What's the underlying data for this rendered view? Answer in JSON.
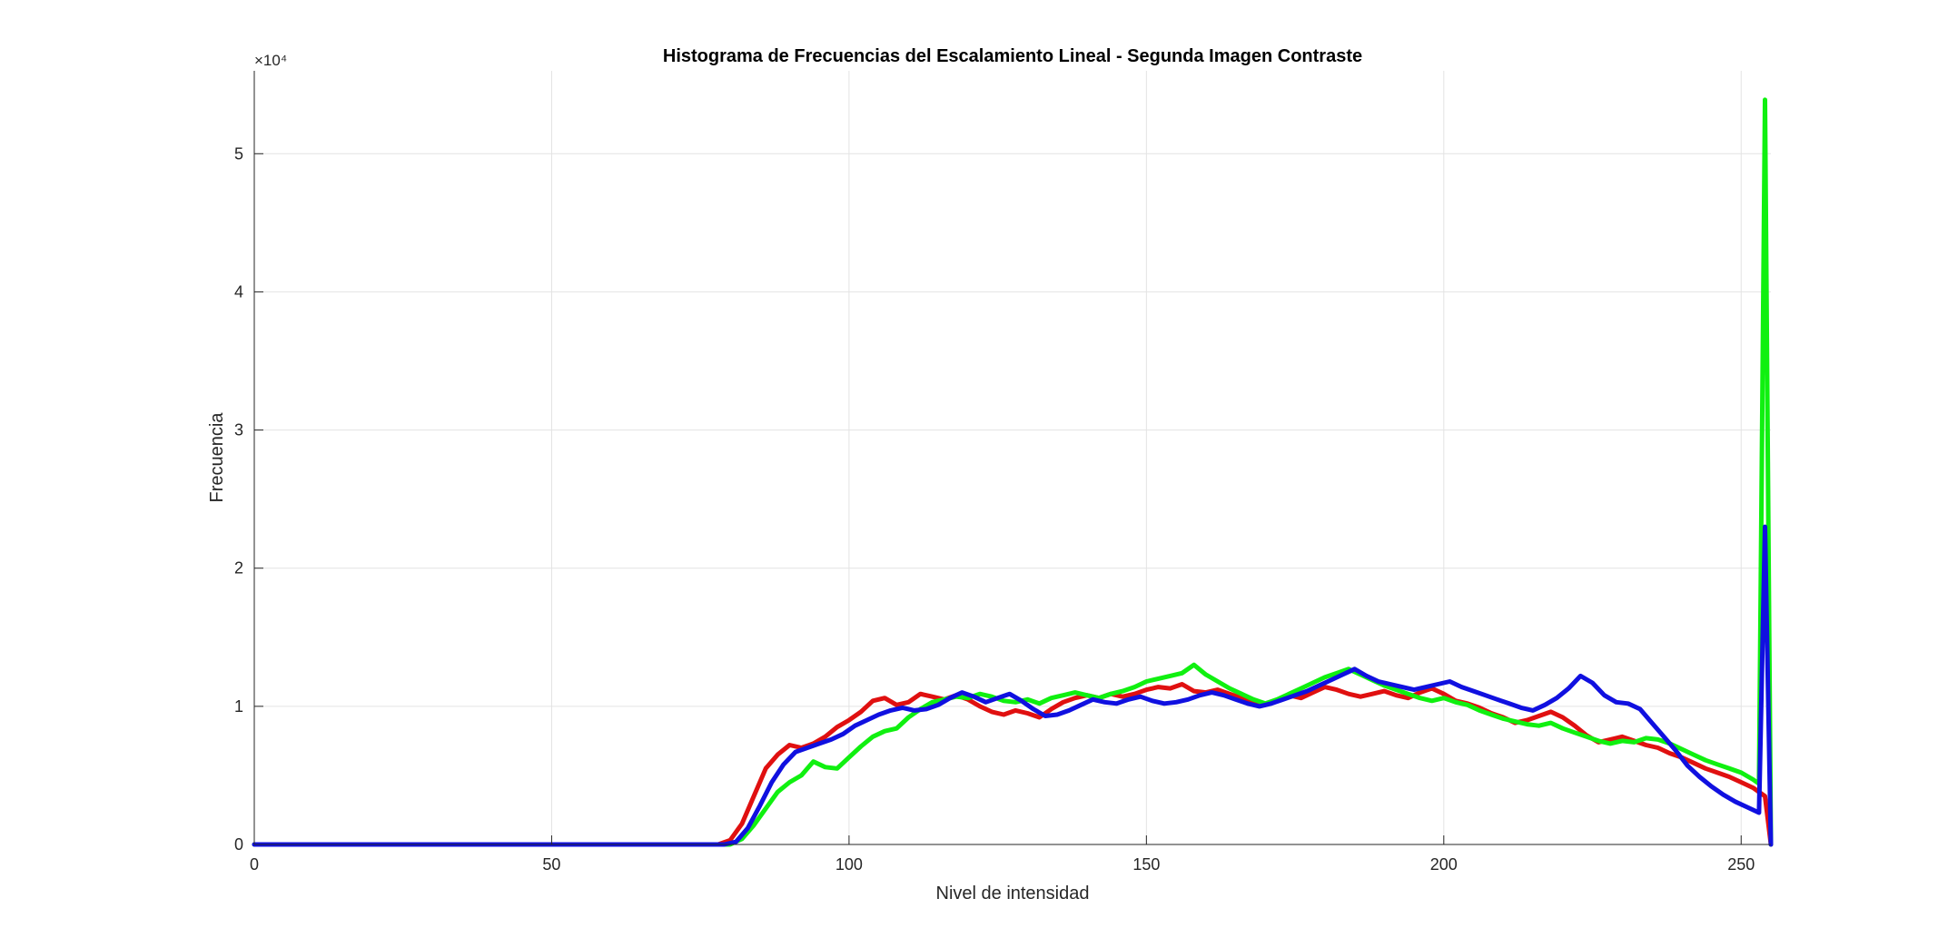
{
  "chart_data": {
    "type": "line",
    "title": "Histograma de Frecuencias del Escalamiento Lineal - Segunda Imagen Contraste",
    "xlabel": "Nivel de intensidad",
    "ylabel": "Frecuencia",
    "y_exponent_label": "×10⁴",
    "xlim": [
      0,
      255
    ],
    "ylim": [
      0,
      56000
    ],
    "xticks": [
      0,
      50,
      100,
      150,
      200,
      250
    ],
    "xtick_labels": [
      "0",
      "50",
      "100",
      "150",
      "200",
      "250"
    ],
    "yticks": [
      0,
      10000,
      20000,
      30000,
      40000,
      50000
    ],
    "ytick_labels": [
      "0",
      "1",
      "2",
      "3",
      "4",
      "5"
    ],
    "grid": true,
    "legend": "none",
    "series": [
      {
        "color": "#e01010",
        "points": [
          [
            0,
            0
          ],
          [
            78,
            0
          ],
          [
            80,
            300
          ],
          [
            82,
            1500
          ],
          [
            84,
            3500
          ],
          [
            86,
            5500
          ],
          [
            88,
            6500
          ],
          [
            90,
            7200
          ],
          [
            92,
            7000
          ],
          [
            94,
            7300
          ],
          [
            96,
            7800
          ],
          [
            98,
            8500
          ],
          [
            100,
            9000
          ],
          [
            102,
            9600
          ],
          [
            104,
            10400
          ],
          [
            106,
            10600
          ],
          [
            108,
            10100
          ],
          [
            110,
            10300
          ],
          [
            112,
            10900
          ],
          [
            114,
            10700
          ],
          [
            116,
            10500
          ],
          [
            118,
            10800
          ],
          [
            120,
            10500
          ],
          [
            122,
            10000
          ],
          [
            124,
            9600
          ],
          [
            126,
            9400
          ],
          [
            128,
            9700
          ],
          [
            130,
            9500
          ],
          [
            132,
            9200
          ],
          [
            134,
            9800
          ],
          [
            136,
            10300
          ],
          [
            138,
            10600
          ],
          [
            140,
            10800
          ],
          [
            142,
            10600
          ],
          [
            144,
            10900
          ],
          [
            146,
            10700
          ],
          [
            148,
            10900
          ],
          [
            150,
            11200
          ],
          [
            152,
            11400
          ],
          [
            154,
            11300
          ],
          [
            156,
            11600
          ],
          [
            158,
            11100
          ],
          [
            160,
            11000
          ],
          [
            162,
            11200
          ],
          [
            164,
            10900
          ],
          [
            166,
            10600
          ],
          [
            168,
            10400
          ],
          [
            170,
            10100
          ],
          [
            172,
            10400
          ],
          [
            174,
            10800
          ],
          [
            176,
            10600
          ],
          [
            178,
            11000
          ],
          [
            180,
            11400
          ],
          [
            182,
            11200
          ],
          [
            184,
            10900
          ],
          [
            186,
            10700
          ],
          [
            188,
            10900
          ],
          [
            190,
            11100
          ],
          [
            192,
            10800
          ],
          [
            194,
            10600
          ],
          [
            196,
            11000
          ],
          [
            198,
            11300
          ],
          [
            200,
            10900
          ],
          [
            202,
            10400
          ],
          [
            204,
            10200
          ],
          [
            206,
            9900
          ],
          [
            208,
            9500
          ],
          [
            210,
            9200
          ],
          [
            212,
            8800
          ],
          [
            214,
            9000
          ],
          [
            216,
            9300
          ],
          [
            218,
            9600
          ],
          [
            220,
            9200
          ],
          [
            222,
            8600
          ],
          [
            224,
            7900
          ],
          [
            226,
            7400
          ],
          [
            228,
            7600
          ],
          [
            230,
            7800
          ],
          [
            232,
            7500
          ],
          [
            234,
            7200
          ],
          [
            236,
            7000
          ],
          [
            238,
            6600
          ],
          [
            240,
            6300
          ],
          [
            242,
            5900
          ],
          [
            244,
            5500
          ],
          [
            246,
            5200
          ],
          [
            248,
            4900
          ],
          [
            250,
            4500
          ],
          [
            252,
            4100
          ],
          [
            253,
            3800
          ],
          [
            254,
            3500
          ],
          [
            255,
            0
          ]
        ]
      },
      {
        "color": "#10f010",
        "points": [
          [
            0,
            0
          ],
          [
            80,
            0
          ],
          [
            82,
            400
          ],
          [
            84,
            1400
          ],
          [
            86,
            2600
          ],
          [
            88,
            3800
          ],
          [
            90,
            4500
          ],
          [
            92,
            5000
          ],
          [
            94,
            6000
          ],
          [
            96,
            5600
          ],
          [
            98,
            5500
          ],
          [
            100,
            6300
          ],
          [
            102,
            7100
          ],
          [
            104,
            7800
          ],
          [
            106,
            8200
          ],
          [
            108,
            8400
          ],
          [
            110,
            9200
          ],
          [
            112,
            9800
          ],
          [
            114,
            10300
          ],
          [
            116,
            10500
          ],
          [
            118,
            10700
          ],
          [
            120,
            10600
          ],
          [
            122,
            10900
          ],
          [
            124,
            10700
          ],
          [
            126,
            10400
          ],
          [
            128,
            10300
          ],
          [
            130,
            10500
          ],
          [
            132,
            10200
          ],
          [
            134,
            10600
          ],
          [
            136,
            10800
          ],
          [
            138,
            11000
          ],
          [
            140,
            10800
          ],
          [
            142,
            10600
          ],
          [
            144,
            10900
          ],
          [
            146,
            11100
          ],
          [
            148,
            11400
          ],
          [
            150,
            11800
          ],
          [
            152,
            12000
          ],
          [
            154,
            12200
          ],
          [
            156,
            12400
          ],
          [
            158,
            13000
          ],
          [
            160,
            12300
          ],
          [
            162,
            11800
          ],
          [
            164,
            11300
          ],
          [
            166,
            10900
          ],
          [
            168,
            10500
          ],
          [
            170,
            10200
          ],
          [
            172,
            10500
          ],
          [
            174,
            10900
          ],
          [
            176,
            11300
          ],
          [
            178,
            11700
          ],
          [
            180,
            12100
          ],
          [
            182,
            12400
          ],
          [
            184,
            12700
          ],
          [
            186,
            12300
          ],
          [
            188,
            11900
          ],
          [
            190,
            11500
          ],
          [
            192,
            11200
          ],
          [
            194,
            10900
          ],
          [
            196,
            10600
          ],
          [
            198,
            10400
          ],
          [
            200,
            10600
          ],
          [
            202,
            10300
          ],
          [
            204,
            10100
          ],
          [
            206,
            9700
          ],
          [
            208,
            9400
          ],
          [
            210,
            9100
          ],
          [
            212,
            8900
          ],
          [
            214,
            8700
          ],
          [
            216,
            8600
          ],
          [
            218,
            8800
          ],
          [
            220,
            8400
          ],
          [
            222,
            8100
          ],
          [
            224,
            7800
          ],
          [
            226,
            7500
          ],
          [
            228,
            7300
          ],
          [
            230,
            7500
          ],
          [
            232,
            7400
          ],
          [
            234,
            7700
          ],
          [
            236,
            7600
          ],
          [
            238,
            7300
          ],
          [
            240,
            6900
          ],
          [
            242,
            6500
          ],
          [
            244,
            6100
          ],
          [
            246,
            5800
          ],
          [
            248,
            5500
          ],
          [
            250,
            5200
          ],
          [
            252,
            4700
          ],
          [
            253,
            4400
          ],
          [
            254,
            53900
          ],
          [
            255,
            0
          ]
        ]
      },
      {
        "color": "#1010e0",
        "points": [
          [
            0,
            0
          ],
          [
            79,
            0
          ],
          [
            81,
            200
          ],
          [
            83,
            1200
          ],
          [
            85,
            2800
          ],
          [
            87,
            4500
          ],
          [
            89,
            5800
          ],
          [
            91,
            6700
          ],
          [
            93,
            7000
          ],
          [
            95,
            7300
          ],
          [
            97,
            7600
          ],
          [
            99,
            8000
          ],
          [
            101,
            8600
          ],
          [
            103,
            9000
          ],
          [
            105,
            9400
          ],
          [
            107,
            9700
          ],
          [
            109,
            9900
          ],
          [
            111,
            9700
          ],
          [
            113,
            9800
          ],
          [
            115,
            10100
          ],
          [
            117,
            10600
          ],
          [
            119,
            11000
          ],
          [
            121,
            10700
          ],
          [
            123,
            10300
          ],
          [
            125,
            10600
          ],
          [
            127,
            10900
          ],
          [
            129,
            10400
          ],
          [
            131,
            9800
          ],
          [
            133,
            9300
          ],
          [
            135,
            9400
          ],
          [
            137,
            9700
          ],
          [
            139,
            10100
          ],
          [
            141,
            10500
          ],
          [
            143,
            10300
          ],
          [
            145,
            10200
          ],
          [
            147,
            10500
          ],
          [
            149,
            10700
          ],
          [
            151,
            10400
          ],
          [
            153,
            10200
          ],
          [
            155,
            10300
          ],
          [
            157,
            10500
          ],
          [
            159,
            10800
          ],
          [
            161,
            11000
          ],
          [
            163,
            10800
          ],
          [
            165,
            10500
          ],
          [
            167,
            10200
          ],
          [
            169,
            10000
          ],
          [
            171,
            10200
          ],
          [
            173,
            10500
          ],
          [
            175,
            10800
          ],
          [
            177,
            11100
          ],
          [
            179,
            11500
          ],
          [
            181,
            11900
          ],
          [
            183,
            12300
          ],
          [
            185,
            12700
          ],
          [
            187,
            12200
          ],
          [
            189,
            11800
          ],
          [
            191,
            11600
          ],
          [
            193,
            11400
          ],
          [
            195,
            11200
          ],
          [
            197,
            11400
          ],
          [
            199,
            11600
          ],
          [
            201,
            11800
          ],
          [
            203,
            11400
          ],
          [
            205,
            11100
          ],
          [
            207,
            10800
          ],
          [
            209,
            10500
          ],
          [
            211,
            10200
          ],
          [
            213,
            9900
          ],
          [
            215,
            9700
          ],
          [
            217,
            10100
          ],
          [
            219,
            10600
          ],
          [
            221,
            11300
          ],
          [
            223,
            12200
          ],
          [
            225,
            11700
          ],
          [
            227,
            10800
          ],
          [
            229,
            10300
          ],
          [
            231,
            10200
          ],
          [
            233,
            9800
          ],
          [
            235,
            8800
          ],
          [
            237,
            7800
          ],
          [
            239,
            6800
          ],
          [
            241,
            5700
          ],
          [
            243,
            4900
          ],
          [
            245,
            4200
          ],
          [
            247,
            3600
          ],
          [
            249,
            3100
          ],
          [
            251,
            2700
          ],
          [
            253,
            2300
          ],
          [
            254,
            23000
          ],
          [
            255,
            0
          ]
        ]
      }
    ]
  }
}
